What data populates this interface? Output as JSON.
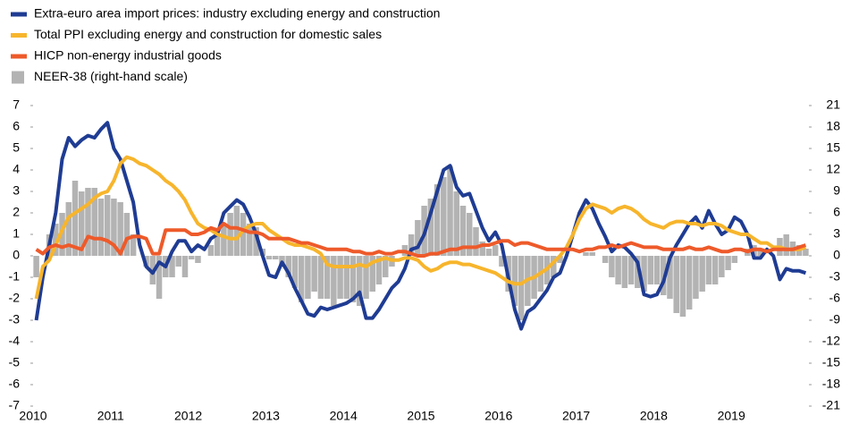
{
  "chart_data": {
    "type": "combo",
    "categories": [
      "2010",
      null,
      null,
      null,
      null,
      null,
      null,
      null,
      null,
      null,
      null,
      null,
      "2011",
      null,
      null,
      null,
      null,
      null,
      null,
      null,
      null,
      null,
      null,
      null,
      "2012",
      null,
      null,
      null,
      null,
      null,
      null,
      null,
      null,
      null,
      null,
      null,
      "2013",
      null,
      null,
      null,
      null,
      null,
      null,
      null,
      null,
      null,
      null,
      null,
      "2014",
      null,
      null,
      null,
      null,
      null,
      null,
      null,
      null,
      null,
      null,
      null,
      "2015",
      null,
      null,
      null,
      null,
      null,
      null,
      null,
      null,
      null,
      null,
      null,
      "2016",
      null,
      null,
      null,
      null,
      null,
      null,
      null,
      null,
      null,
      null,
      null,
      "2017",
      null,
      null,
      null,
      null,
      null,
      null,
      null,
      null,
      null,
      null,
      null,
      "2018",
      null,
      null,
      null,
      null,
      null,
      null,
      null,
      null,
      null,
      null,
      null,
      "2019",
      null,
      null,
      null,
      null,
      null,
      null,
      null,
      null,
      null,
      null,
      null
    ],
    "series": [
      {
        "name": "Extra-euro area import prices: industry excluding energy and construction",
        "type": "line",
        "color": "#1f3c93",
        "values": [
          -3,
          -1,
          0.5,
          2,
          4.5,
          5.5,
          5.1,
          5.4,
          5.6,
          5.5,
          5.9,
          6.2,
          5,
          4.5,
          3.5,
          2.5,
          0.5,
          -0.5,
          -0.8,
          -0.3,
          -0.5,
          0.2,
          0.7,
          0.7,
          0.2,
          0.5,
          0.3,
          0.8,
          1,
          2,
          2.3,
          2.6,
          2.4,
          1.8,
          1,
          0,
          -0.9,
          -1,
          -0.3,
          -0.8,
          -1.5,
          -2.1,
          -2.7,
          -2.8,
          -2.4,
          -2.5,
          -2.4,
          -2.3,
          -2.2,
          -2,
          -1.7,
          -2.9,
          -2.9,
          -2.5,
          -2,
          -1.5,
          -1.2,
          -0.6,
          0.3,
          0.4,
          1,
          2,
          3,
          4,
          4.2,
          3.2,
          2.8,
          2.9,
          2.1,
          1.3,
          0.7,
          1.1,
          0.5,
          -1,
          -2.5,
          -3.4,
          -2.6,
          -2.4,
          -2,
          -1.6,
          -1,
          -0.8,
          0,
          1,
          2,
          2.6,
          2.2,
          1.5,
          0.9,
          0.2,
          0.5,
          0.4,
          0.1,
          -0.3,
          -1.8,
          -1.9,
          -1.8,
          -1.2,
          -0.1,
          0.5,
          1,
          1.5,
          1.8,
          1.3,
          2.1,
          1.5,
          1,
          1.2,
          1.8,
          1.6,
          1,
          -0.1,
          -0.1,
          0.3,
          0,
          -1.1,
          -0.6,
          -0.7,
          -0.7,
          -0.8
        ]
      },
      {
        "name": "Total PPI  excluding energy and construction for domestic sales",
        "type": "line",
        "color": "#f7b52c",
        "values": [
          -2,
          -0.5,
          -0.2,
          0.5,
          1.2,
          1.8,
          2,
          2.2,
          2.4,
          2.7,
          2.9,
          3,
          3.5,
          4.3,
          4.6,
          4.5,
          4.3,
          4.2,
          4,
          3.8,
          3.5,
          3.3,
          3,
          2.6,
          2,
          1.5,
          1.3,
          1.2,
          1,
          0.9,
          0.8,
          0.8,
          1.2,
          1.4,
          1.5,
          1.5,
          1.2,
          1,
          0.8,
          0.6,
          0.5,
          0.5,
          0.4,
          0.3,
          0.1,
          -0.4,
          -0.5,
          -0.5,
          -0.5,
          -0.5,
          -0.4,
          -0.5,
          -0.3,
          -0.2,
          -0.1,
          -0.2,
          -0.2,
          -0.1,
          -0.1,
          -0.2,
          -0.5,
          -0.7,
          -0.6,
          -0.4,
          -0.3,
          -0.3,
          -0.4,
          -0.4,
          -0.5,
          -0.6,
          -0.7,
          -0.8,
          -1,
          -1.2,
          -1.3,
          -1.3,
          -1.1,
          -1,
          -0.8,
          -0.6,
          -0.3,
          0,
          0.4,
          1,
          1.7,
          2.2,
          2.4,
          2.3,
          2.2,
          2,
          2.2,
          2.3,
          2.2,
          2,
          1.7,
          1.5,
          1.4,
          1.3,
          1.5,
          1.6,
          1.6,
          1.5,
          1.5,
          1.4,
          1.5,
          1.5,
          1.4,
          1.2,
          1.1,
          1,
          1,
          0.8,
          0.6,
          0.6,
          0.4,
          0.4,
          0.3,
          0.3,
          0.3,
          0.4
        ]
      },
      {
        "name": "HICP non-energy industrial goods",
        "type": "line",
        "color": "#ee5a2a",
        "values": [
          0.3,
          0.1,
          0.4,
          0.5,
          0.4,
          0.5,
          0.4,
          0.3,
          0.9,
          0.8,
          0.8,
          0.7,
          0.5,
          0.1,
          0.8,
          0.9,
          0.9,
          0.8,
          0.1,
          0.1,
          1.2,
          1.2,
          1.2,
          1.2,
          1,
          1,
          1.1,
          1.3,
          1.2,
          1.5,
          1.3,
          1.3,
          1.2,
          1.1,
          1.1,
          1,
          0.8,
          0.8,
          0.8,
          0.8,
          0.7,
          0.6,
          0.6,
          0.5,
          0.4,
          0.3,
          0.3,
          0.3,
          0.3,
          0.2,
          0.2,
          0.1,
          0.1,
          0.2,
          0.1,
          0.1,
          0.2,
          0.2,
          0.1,
          0,
          0,
          0.1,
          0.1,
          0.2,
          0.3,
          0.3,
          0.4,
          0.4,
          0.4,
          0.5,
          0.5,
          0.6,
          0.7,
          0.7,
          0.5,
          0.6,
          0.6,
          0.5,
          0.4,
          0.3,
          0.3,
          0.3,
          0.3,
          0.3,
          0.2,
          0.3,
          0.3,
          0.4,
          0.4,
          0.5,
          0.4,
          0.5,
          0.6,
          0.5,
          0.4,
          0.4,
          0.4,
          0.3,
          0.3,
          0.3,
          0.3,
          0.4,
          0.3,
          0.3,
          0.4,
          0.3,
          0.2,
          0.2,
          0.3,
          0.3,
          0.2,
          0.3,
          0.3,
          0.2,
          0.3,
          0.3,
          0.3,
          0.3,
          0.4,
          0.5
        ]
      },
      {
        "name": "NEER-38 (right-hand scale)",
        "type": "bar",
        "axis": "y2",
        "color": "#b3b3b3",
        "values": [
          -3,
          0,
          3,
          4.5,
          6,
          7.5,
          10.5,
          9,
          9.5,
          9.5,
          8,
          8.5,
          8,
          7.5,
          6,
          3,
          0,
          -1.5,
          -4,
          -6,
          -3,
          -3,
          -1.5,
          -3,
          -0.5,
          -1,
          0,
          1.5,
          3,
          4.5,
          6,
          7,
          6,
          4.5,
          4,
          1,
          -0.5,
          -0.5,
          -1.5,
          -3,
          -4.5,
          -6.5,
          -6,
          -5,
          -6,
          -6,
          -7,
          -6,
          -6,
          -6.5,
          -7,
          -6,
          -5,
          -4,
          -3,
          -1.5,
          0,
          1.5,
          3,
          5,
          7,
          8,
          10,
          11,
          12.5,
          9,
          7,
          6,
          4,
          2,
          1,
          1.5,
          -1.5,
          -5,
          -7,
          -9,
          -7,
          -6,
          -5,
          -4,
          -3,
          -1,
          0,
          0,
          0,
          0.5,
          0.5,
          0,
          -1,
          -3,
          -4,
          -4.5,
          -4,
          -4.5,
          -5,
          -4,
          -4,
          -5.5,
          -6,
          -8,
          -8.5,
          -7.5,
          -6,
          -5,
          -4,
          -4,
          -3,
          -2,
          -1,
          0,
          1,
          1.5,
          1,
          0,
          0,
          2.5,
          3,
          2,
          1.5,
          1
        ]
      }
    ],
    "ylim": [
      -7,
      7
    ],
    "yticks": [
      -7,
      -6,
      -5,
      -4,
      -3,
      -2,
      -1,
      0,
      1,
      2,
      3,
      4,
      5,
      6,
      7
    ],
    "y2lim": [
      -21,
      21
    ],
    "y2ticks": [
      -21,
      -18,
      -15,
      -12,
      -9,
      -6,
      -3,
      0,
      3,
      6,
      9,
      12,
      15,
      18,
      21
    ],
    "legend": "top-left"
  }
}
